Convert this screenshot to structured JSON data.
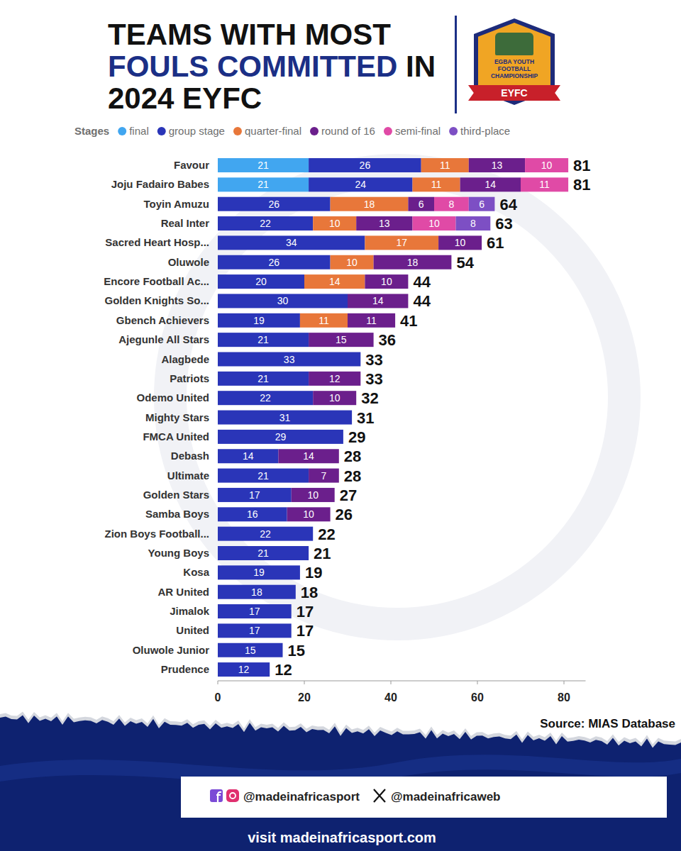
{
  "chart_data": {
    "type": "bar",
    "orientation": "horizontal",
    "stacked": true,
    "data_labels": true,
    "grid": false,
    "legend": "top",
    "title": "TEAMS WITH MOST FOULS COMMITTED IN 2024 EYFC",
    "title_highlight": "FOULS COMMITTED",
    "legend_title": "Stages",
    "categories": [
      "Favour",
      "Joju Fadairo Babes",
      "Toyin Amuzu",
      "Real Inter",
      "Sacred Heart Hosp...",
      "Oluwole",
      "Encore Football Ac...",
      "Golden Knights So...",
      "Gbench Achievers",
      "Ajegunle All Stars",
      "Alagbede",
      "Patriots",
      "Odemo United",
      "Mighty Stars",
      "FMCA United",
      "Debash",
      "Ultimate",
      "Golden Stars",
      "Samba Boys",
      "Zion Boys Football...",
      "Young Boys",
      "Kosa",
      "AR United",
      "Jimalok",
      "United",
      "Oluwole Junior",
      "Prudence"
    ],
    "series": [
      {
        "name": "final",
        "color": "#41a6f0",
        "values": [
          21,
          21,
          null,
          null,
          null,
          null,
          null,
          null,
          null,
          null,
          null,
          null,
          null,
          null,
          null,
          null,
          null,
          null,
          null,
          null,
          null,
          null,
          null,
          null,
          null,
          null,
          null
        ]
      },
      {
        "name": "group stage",
        "color": "#2a35b8",
        "values": [
          26,
          24,
          26,
          22,
          34,
          26,
          20,
          30,
          19,
          21,
          33,
          21,
          22,
          31,
          29,
          14,
          21,
          17,
          16,
          22,
          21,
          19,
          18,
          17,
          17,
          15,
          12
        ]
      },
      {
        "name": "quarter-final",
        "color": "#e8773a",
        "values": [
          11,
          11,
          18,
          10,
          17,
          10,
          14,
          null,
          11,
          null,
          null,
          null,
          null,
          null,
          null,
          null,
          null,
          null,
          null,
          null,
          null,
          null,
          null,
          null,
          null,
          null,
          null
        ]
      },
      {
        "name": "round of 16",
        "color": "#6b1f8c",
        "values": [
          13,
          14,
          6,
          13,
          10,
          18,
          10,
          14,
          11,
          15,
          null,
          12,
          10,
          null,
          null,
          14,
          7,
          10,
          10,
          null,
          null,
          null,
          null,
          null,
          null,
          null,
          null
        ]
      },
      {
        "name": "semi-final",
        "color": "#e04aa6",
        "values": [
          10,
          11,
          8,
          10,
          null,
          null,
          null,
          null,
          null,
          null,
          null,
          null,
          null,
          null,
          null,
          null,
          null,
          null,
          null,
          null,
          null,
          null,
          null,
          null,
          null,
          null,
          null
        ]
      },
      {
        "name": "third-place",
        "color": "#7d4fc4",
        "values": [
          null,
          null,
          6,
          8,
          null,
          null,
          null,
          null,
          null,
          null,
          null,
          null,
          null,
          null,
          null,
          null,
          null,
          null,
          null,
          null,
          null,
          null,
          null,
          null,
          null,
          null,
          null
        ]
      }
    ],
    "totals": [
      81,
      81,
      64,
      63,
      61,
      54,
      44,
      44,
      41,
      36,
      33,
      33,
      32,
      31,
      29,
      28,
      28,
      27,
      26,
      22,
      21,
      19,
      18,
      17,
      17,
      15,
      12
    ],
    "xlim": [
      0,
      85
    ],
    "xticks": [
      0,
      20,
      40,
      60,
      80
    ]
  },
  "page": {
    "logo_name": "EGBA YOUTH FOOTBALL CHAMPIONSHIP",
    "logo_short": "EYFC",
    "source": "Source: MIAS Database",
    "social_handle": "@madeinafricasport",
    "x_handle": "@madeinafricaweb",
    "footer": "visit madeinafricasport.com"
  }
}
